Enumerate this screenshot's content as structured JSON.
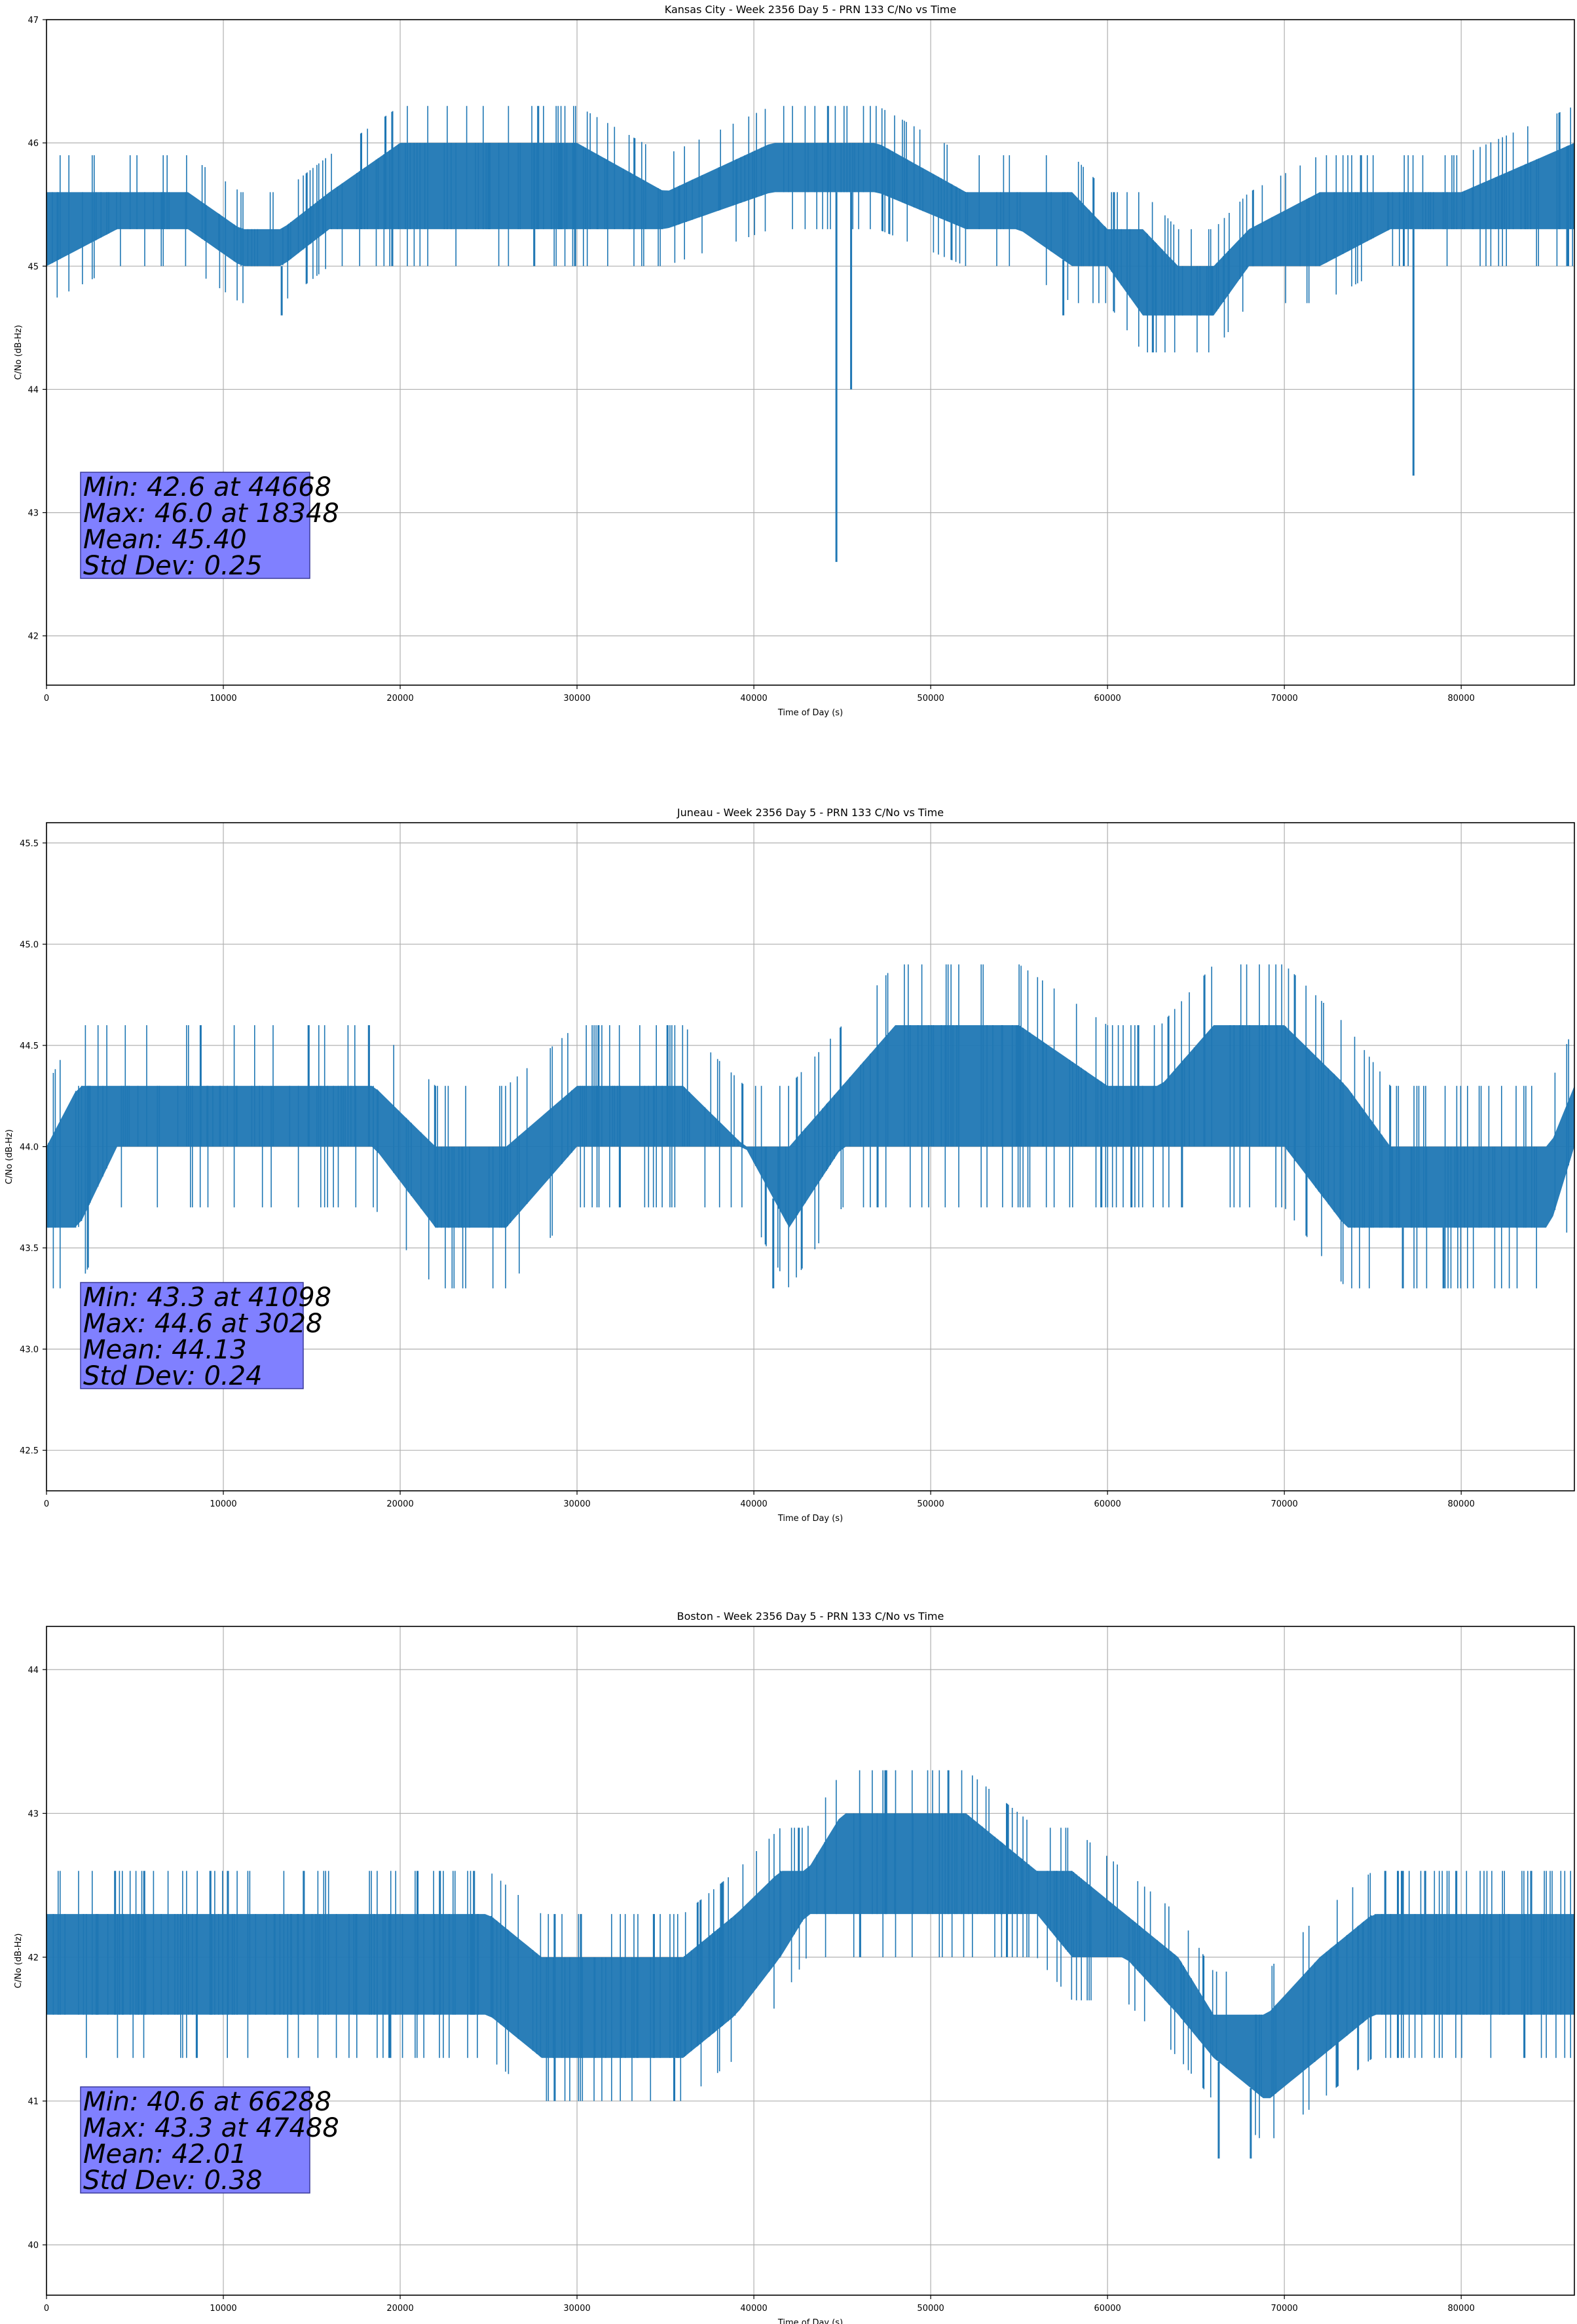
{
  "chart_data": [
    {
      "type": "line",
      "title": "Kansas City - Week 2356 Day 5 - PRN 133 C/No vs Time",
      "xlabel": "Time of Day (s)",
      "ylabel": "C/No (dB-Hz)",
      "xlim": [
        0,
        86400
      ],
      "ylim": [
        41.6,
        47.0
      ],
      "xticks": [
        0,
        10000,
        20000,
        30000,
        40000,
        50000,
        60000,
        70000,
        80000
      ],
      "yticks": [
        42,
        43,
        44,
        45,
        46,
        47
      ],
      "ytick_labels": [
        "42",
        "43",
        "44",
        "45",
        "46",
        "47"
      ],
      "grid": true,
      "series": [
        {
          "name": "C/No",
          "color": "#1f77b4",
          "x": [
            0,
            4000,
            8000,
            11000,
            13300,
            16000,
            20000,
            25000,
            30000,
            35000,
            41000,
            44000,
            47000,
            52000,
            55000,
            58000,
            60000,
            62000,
            64000,
            66000,
            68000,
            72000,
            76000,
            80000,
            86400
          ],
          "low": [
            45.0,
            45.3,
            45.3,
            45.0,
            45.0,
            45.3,
            45.3,
            45.3,
            45.3,
            45.3,
            45.6,
            45.6,
            45.6,
            45.3,
            45.3,
            45.0,
            45.0,
            44.6,
            44.6,
            44.6,
            45.0,
            45.0,
            45.3,
            45.3,
            45.3
          ],
          "high": [
            45.6,
            45.6,
            45.6,
            45.3,
            45.3,
            45.6,
            46.0,
            46.0,
            46.0,
            45.6,
            46.0,
            46.0,
            46.0,
            45.6,
            45.6,
            45.6,
            45.3,
            45.3,
            45.0,
            45.0,
            45.3,
            45.6,
            45.6,
            45.6,
            46.0
          ],
          "spikes": [
            {
              "x": 13300,
              "y": 44.6
            },
            {
              "x": 44668,
              "y": 42.6
            },
            {
              "x": 45500,
              "y": 44.0
            },
            {
              "x": 57500,
              "y": 44.6
            },
            {
              "x": 77300,
              "y": 43.3
            }
          ]
        }
      ],
      "stats": {
        "min": "Min: 42.6 at 44668",
        "max": "Max: 46.0 at 18348",
        "mean": "Mean: 45.40",
        "std": "Std Dev: 0.25"
      }
    },
    {
      "type": "line",
      "title": "Juneau - Week 2356 Day 5 - PRN 133 C/No vs Time",
      "xlabel": "Time of Day (s)",
      "ylabel": "C/No (dB-Hz)",
      "xlim": [
        0,
        86400
      ],
      "ylim": [
        42.3,
        45.6
      ],
      "xticks": [
        0,
        10000,
        20000,
        30000,
        40000,
        50000,
        60000,
        70000,
        80000
      ],
      "yticks": [
        42.5,
        43.0,
        43.5,
        44.0,
        44.5,
        45.0,
        45.5
      ],
      "ytick_labels": [
        "42.5",
        "43.0",
        "43.5",
        "44.0",
        "44.5",
        "45.0",
        "45.5"
      ],
      "grid": true,
      "series": [
        {
          "name": "C/No",
          "color": "#1f77b4",
          "x": [
            0,
            1800,
            4000,
            10000,
            18500,
            22000,
            26000,
            30000,
            36000,
            39500,
            42000,
            45000,
            48000,
            55000,
            60000,
            63000,
            66000,
            70000,
            73500,
            76000,
            80000,
            85000,
            86400
          ],
          "low": [
            43.6,
            43.6,
            44.0,
            44.0,
            44.0,
            43.6,
            43.6,
            44.0,
            44.0,
            44.0,
            43.6,
            44.0,
            44.0,
            44.0,
            44.0,
            44.0,
            44.0,
            44.0,
            43.6,
            43.6,
            43.6,
            43.6,
            44.0
          ],
          "high": [
            44.0,
            44.3,
            44.3,
            44.3,
            44.3,
            44.0,
            44.0,
            44.3,
            44.3,
            44.0,
            44.0,
            44.3,
            44.6,
            44.6,
            44.3,
            44.3,
            44.6,
            44.6,
            44.3,
            44.0,
            44.0,
            44.0,
            44.3
          ],
          "spikes": [
            {
              "x": 41098,
              "y": 43.3
            },
            {
              "x": 76700,
              "y": 43.3
            },
            {
              "x": 79000,
              "y": 43.3
            }
          ]
        }
      ],
      "stats": {
        "min": "Min: 43.3 at 41098",
        "max": "Max: 44.6 at 3028",
        "mean": "Mean: 44.13",
        "std": "Std Dev: 0.24"
      }
    },
    {
      "type": "line",
      "title": "Boston - Week 2356 Day 5 - PRN 133 C/No vs Time",
      "xlabel": "Time of Day (s)",
      "ylabel": "C/No (dB-Hz)",
      "xlim": [
        0,
        86400
      ],
      "ylim": [
        39.65,
        44.3
      ],
      "xticks": [
        0,
        10000,
        20000,
        30000,
        40000,
        50000,
        60000,
        70000,
        80000
      ],
      "yticks": [
        40,
        41,
        42,
        43,
        44
      ],
      "ytick_labels": [
        "40",
        "41",
        "42",
        "43",
        "44"
      ],
      "grid": true,
      "series": [
        {
          "name": "C/No",
          "color": "#1f77b4",
          "x": [
            0,
            5000,
            10000,
            15000,
            20000,
            25000,
            28000,
            32000,
            36000,
            39000,
            41500,
            43000,
            45000,
            47000,
            52000,
            56000,
            58000,
            61000,
            64000,
            66000,
            69000,
            72000,
            75000,
            80000,
            86400
          ],
          "low": [
            41.6,
            41.6,
            41.6,
            41.6,
            41.6,
            41.6,
            41.3,
            41.3,
            41.3,
            41.6,
            42.0,
            42.3,
            42.3,
            42.3,
            42.3,
            42.3,
            42.0,
            42.0,
            41.6,
            41.3,
            41.0,
            41.3,
            41.6,
            41.6,
            41.6
          ],
          "high": [
            42.3,
            42.3,
            42.3,
            42.3,
            42.3,
            42.3,
            42.0,
            42.0,
            42.0,
            42.3,
            42.6,
            42.6,
            43.0,
            43.0,
            43.0,
            42.6,
            42.6,
            42.3,
            42.0,
            41.6,
            41.6,
            42.0,
            42.3,
            42.3,
            42.3
          ],
          "spikes": [
            {
              "x": 66288,
              "y": 40.6
            },
            {
              "x": 68100,
              "y": 40.6
            },
            {
              "x": 47488,
              "y": 43.3
            },
            {
              "x": 51000,
              "y": 43.3
            },
            {
              "x": 35500,
              "y": 41.0
            }
          ]
        }
      ],
      "stats": {
        "min": "Min: 40.6 at 66288",
        "max": "Max: 43.3 at 47488",
        "mean": "Mean: 42.01",
        "std": "Std Dev: 0.38"
      }
    }
  ]
}
